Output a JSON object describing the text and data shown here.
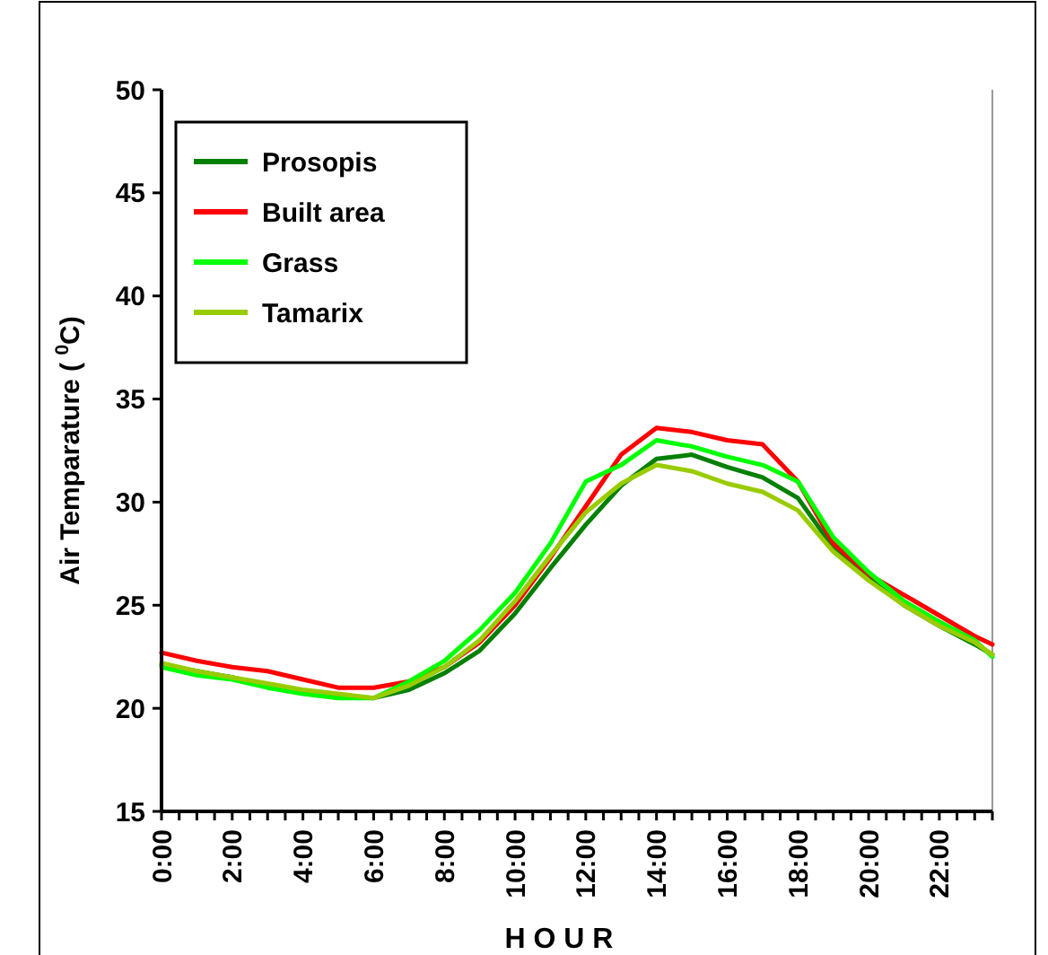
{
  "chart_data": {
    "type": "line",
    "xlabel": "H O U R",
    "ylabel": "Air Temparature ( $^{0}$C)",
    "x": [
      0,
      1,
      2,
      3,
      4,
      5,
      6,
      7,
      8,
      9,
      10,
      11,
      12,
      13,
      14,
      15,
      16,
      17,
      18,
      19,
      20,
      21,
      22,
      23,
      23.5
    ],
    "xlim": [
      0,
      23.5
    ],
    "xticks": [
      {
        "value": 0,
        "label": "0:00"
      },
      {
        "value": 0.5,
        "label": null
      },
      {
        "value": 1,
        "label": null
      },
      {
        "value": 1.5,
        "label": null
      },
      {
        "value": 2,
        "label": "2:00"
      },
      {
        "value": 2.5,
        "label": null
      },
      {
        "value": 3,
        "label": null
      },
      {
        "value": 3.5,
        "label": null
      },
      {
        "value": 4,
        "label": "4:00"
      },
      {
        "value": 4.5,
        "label": null
      },
      {
        "value": 5,
        "label": null
      },
      {
        "value": 5.5,
        "label": null
      },
      {
        "value": 6,
        "label": "6:00"
      },
      {
        "value": 6.5,
        "label": null
      },
      {
        "value": 7,
        "label": null
      },
      {
        "value": 7.5,
        "label": null
      },
      {
        "value": 8,
        "label": "8:00"
      },
      {
        "value": 8.5,
        "label": null
      },
      {
        "value": 9,
        "label": null
      },
      {
        "value": 9.5,
        "label": null
      },
      {
        "value": 10,
        "label": "10:00"
      },
      {
        "value": 10.5,
        "label": null
      },
      {
        "value": 11,
        "label": null
      },
      {
        "value": 11.5,
        "label": null
      },
      {
        "value": 12,
        "label": "12:00"
      },
      {
        "value": 12.5,
        "label": null
      },
      {
        "value": 13,
        "label": null
      },
      {
        "value": 13.5,
        "label": null
      },
      {
        "value": 14,
        "label": "14:00"
      },
      {
        "value": 14.5,
        "label": null
      },
      {
        "value": 15,
        "label": null
      },
      {
        "value": 15.5,
        "label": null
      },
      {
        "value": 16,
        "label": "16:00"
      },
      {
        "value": 16.5,
        "label": null
      },
      {
        "value": 17,
        "label": null
      },
      {
        "value": 17.5,
        "label": null
      },
      {
        "value": 18,
        "label": "18:00"
      },
      {
        "value": 18.5,
        "label": null
      },
      {
        "value": 19,
        "label": null
      },
      {
        "value": 19.5,
        "label": null
      },
      {
        "value": 20,
        "label": "20:00"
      },
      {
        "value": 20.5,
        "label": null
      },
      {
        "value": 21,
        "label": null
      },
      {
        "value": 21.5,
        "label": null
      },
      {
        "value": 22,
        "label": "22:00"
      },
      {
        "value": 22.5,
        "label": null
      },
      {
        "value": 23,
        "label": null
      },
      {
        "value": 23.5,
        "label": null
      }
    ],
    "ylim": [
      15,
      50
    ],
    "yticks": [
      15,
      20,
      25,
      30,
      35,
      40,
      45,
      50
    ],
    "grid": false,
    "legend": "top left",
    "marker": "none",
    "line_style": "solid",
    "series": [
      {
        "name": "Prosopis",
        "color": "#008000",
        "values": [
          22.1,
          21.8,
          21.5,
          21.1,
          20.8,
          20.6,
          20.5,
          20.9,
          21.7,
          22.8,
          24.6,
          26.8,
          28.9,
          30.8,
          32.1,
          32.3,
          31.7,
          31.2,
          30.2,
          27.8,
          26.3,
          25.0,
          24.0,
          23.1,
          22.6
        ]
      },
      {
        "name": "Built area",
        "color": "#ff0000",
        "values": [
          22.7,
          22.3,
          22.0,
          21.8,
          21.4,
          21.0,
          21.0,
          21.3,
          22.0,
          23.2,
          25.0,
          27.3,
          29.8,
          32.3,
          33.6,
          33.4,
          33.0,
          32.8,
          31.0,
          28.0,
          26.5,
          25.5,
          24.5,
          23.5,
          23.1
        ]
      },
      {
        "name": "Grass",
        "color": "#00ff00",
        "values": [
          22.0,
          21.6,
          21.4,
          21.0,
          20.7,
          20.5,
          20.5,
          21.3,
          22.3,
          23.8,
          25.6,
          28.0,
          31.0,
          31.8,
          33.0,
          32.7,
          32.2,
          31.8,
          31.0,
          28.3,
          26.6,
          25.2,
          24.2,
          23.3,
          22.5
        ]
      },
      {
        "name": "Tamarix",
        "color": "#99cc00",
        "values": [
          22.2,
          21.8,
          21.5,
          21.2,
          20.9,
          20.7,
          20.5,
          21.1,
          22.0,
          23.3,
          25.2,
          27.4,
          29.5,
          30.9,
          31.8,
          31.5,
          30.9,
          30.5,
          29.6,
          27.6,
          26.2,
          25.0,
          24.0,
          23.2,
          22.6
        ]
      }
    ]
  }
}
